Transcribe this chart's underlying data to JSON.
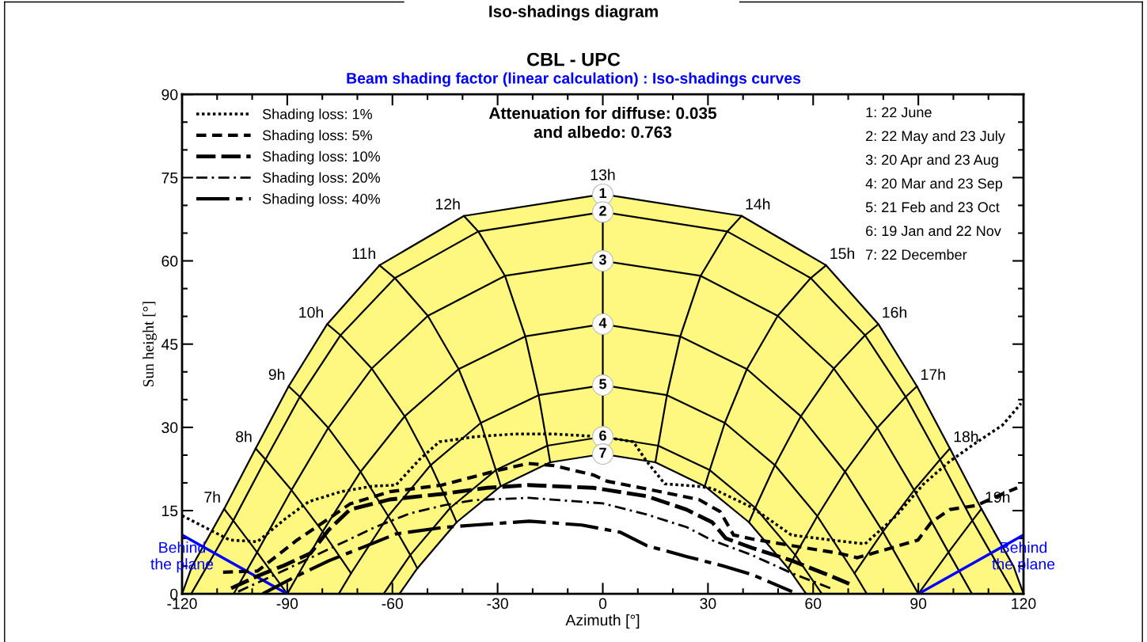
{
  "chart_data": {
    "type": "line",
    "title": "CBL - UPC",
    "subtitle": "Beam shading factor (linear calculation) : Iso-shadings curves",
    "xlabel": "Azimuth [°]",
    "ylabel": "Sun height [°]",
    "xlim": [
      -120,
      120
    ],
    "ylim": [
      0,
      90
    ],
    "xticks": [
      -120,
      {
        "value": -110,
        "label": null
      },
      {
        "value": -100,
        "label": null
      },
      -90,
      {
        "value": -80,
        "label": null
      },
      {
        "value": -70,
        "label": null
      },
      -60,
      {
        "value": -50,
        "label": null
      },
      {
        "value": -40,
        "label": null
      },
      -30,
      {
        "value": -20,
        "label": null
      },
      {
        "value": -10,
        "label": null
      },
      0,
      {
        "value": 10,
        "label": null
      },
      {
        "value": 20,
        "label": null
      },
      30,
      {
        "value": 40,
        "label": null
      },
      {
        "value": 50,
        "label": null
      },
      60,
      {
        "value": 70,
        "label": null
      },
      {
        "value": 80,
        "label": null
      },
      90,
      {
        "value": 100,
        "label": null
      },
      {
        "value": 110,
        "label": null
      },
      120
    ],
    "yticks": [
      0,
      {
        "value": 5,
        "label": null
      },
      {
        "value": 10,
        "label": null
      },
      15,
      {
        "value": 20,
        "label": null
      },
      {
        "value": 25,
        "label": null
      },
      30,
      {
        "value": 35,
        "label": null
      },
      {
        "value": 40,
        "label": null
      },
      45,
      {
        "value": 50,
        "label": null
      },
      {
        "value": 55,
        "label": null
      },
      60,
      {
        "value": 65,
        "label": null
      },
      {
        "value": 70,
        "label": null
      },
      75,
      {
        "value": 80,
        "label": null
      },
      {
        "value": 85,
        "label": null
      },
      90
    ],
    "grid": false,
    "legend": "top left",
    "marker": "none",
    "annotations": [
      "Iso-shadings diagram",
      "Attenuation for diffuse: 0.035\nand albedo: 0.763",
      "1: 22 June",
      "2: 22 May and 23 July",
      "3: 20 Apr and 23 Aug",
      "4: 20 Mar and 23 Sep",
      "5: 21 Feb and 23 Oct",
      "6: 19 Jan and 22 Nov",
      "7: 22 December"
    ],
    "series": [
      {
        "name": "1",
        "type": "area",
        "color": "#fff880",
        "x": [
          -120,
          -117.2,
          -108,
          -99,
          -89.6,
          -78.6,
          -63.7,
          -39.6,
          0,
          39.6,
          63.7,
          78.6,
          89.6,
          99,
          108,
          117.2,
          120
        ],
        "values": [
          0,
          4.9,
          15.3,
          26.2,
          37.4,
          48.6,
          59.2,
          68.1,
          72,
          68.1,
          59.2,
          48.6,
          37.4,
          26.2,
          15.3,
          4.9,
          0
        ]
      },
      {
        "name": "2",
        "color": "#000000",
        "x": [
          -117.4,
          -105.4,
          -96.2,
          -86.4,
          -74.8,
          -59.3,
          -35.5,
          0,
          35.5,
          59.3,
          74.8,
          86.4,
          96.2,
          105.4,
          117.4
        ],
        "values": [
          0,
          13.2,
          24.2,
          35.5,
          46.6,
          56.9,
          65.3,
          68.8,
          65.3,
          56.9,
          46.6,
          35.5,
          24.2,
          13.2,
          0
        ]
      },
      {
        "name": "3",
        "color": "#000000",
        "x": [
          -105.3,
          -98.6,
          -88.8,
          -78.3,
          -65.9,
          -49.9,
          -27.9,
          0,
          27.9,
          49.9,
          65.9,
          78.3,
          88.8,
          98.6,
          105.3
        ],
        "values": [
          0,
          7.5,
          18.7,
          29.9,
          40.6,
          50.1,
          57.3,
          60,
          57.3,
          50.1,
          40.6,
          29.9,
          18.7,
          7.5,
          0
        ]
      },
      {
        "name": "4",
        "color": "#000000",
        "x": [
          -90,
          -79.9,
          -69.1,
          -56.5,
          -41.1,
          -22.1,
          0,
          22.1,
          41.1,
          56.5,
          69.1,
          79.9,
          90
        ],
        "values": [
          0,
          11.2,
          22,
          32,
          40.5,
          46.4,
          48.6,
          46.4,
          40.5,
          32,
          22,
          11.2,
          0
        ]
      },
      {
        "name": "5",
        "color": "#000000",
        "x": [
          -75.3,
          -71.8,
          -61.2,
          -49.1,
          -34.8,
          -18.3,
          0,
          18.3,
          34.8,
          49.1,
          61.2,
          71.8,
          75.3
        ],
        "values": [
          0,
          3.7,
          14,
          23.2,
          30.8,
          35.8,
          37.6,
          35.8,
          30.8,
          23.2,
          14,
          3.7,
          0
        ]
      },
      {
        "name": "6",
        "color": "#000000",
        "x": [
          -62.5,
          -54.9,
          -43.5,
          -30.5,
          -15.8,
          0,
          15.8,
          30.5,
          43.5,
          54.9,
          62.5
        ],
        "values": [
          0,
          7,
          15.5,
          22.3,
          26.7,
          28.3,
          26.7,
          22.3,
          15.5,
          7,
          0
        ]
      },
      {
        "name": "7",
        "type": "area",
        "color": "#ffffff",
        "x": [
          -58,
          -52.9,
          -41.7,
          -29.1,
          -15,
          0,
          15,
          29.1,
          41.7,
          52.9,
          58
        ],
        "values": [
          0,
          4.6,
          12.9,
          19.4,
          23.7,
          25.2,
          23.7,
          19.4,
          12.9,
          4.6,
          0
        ]
      },
      {
        "name": "7h",
        "color": "#000000",
        "x": [
          -108,
          -105.4,
          -98.6,
          -90
        ],
        "values": [
          15.3,
          13.2,
          7.5,
          0
        ]
      },
      {
        "name": "8h",
        "color": "#000000",
        "x": [
          -99,
          -96.2,
          -88.8,
          -79.9,
          -71.8
        ],
        "values": [
          26.2,
          24.2,
          18.7,
          11.2,
          3.7
        ]
      },
      {
        "name": "9h",
        "color": "#000000",
        "x": [
          -89.6,
          -86.4,
          -78.3,
          -69.1,
          -61.2,
          -54.9,
          -52.9
        ],
        "values": [
          37.4,
          35.5,
          29.9,
          22,
          14,
          7,
          4.6
        ]
      },
      {
        "name": "10h",
        "color": "#000000",
        "x": [
          -78.6,
          -74.8,
          -65.9,
          -56.5,
          -49.1,
          -43.5,
          -41.7
        ],
        "values": [
          48.6,
          46.6,
          40.6,
          32,
          23.2,
          15.5,
          12.9
        ]
      },
      {
        "name": "11h",
        "color": "#000000",
        "x": [
          -63.7,
          -59.3,
          -49.9,
          -41.1,
          -34.8,
          -30.5,
          -29.1
        ],
        "values": [
          59.2,
          56.9,
          50.1,
          40.5,
          30.8,
          22.3,
          19.4
        ]
      },
      {
        "name": "12h",
        "color": "#000000",
        "x": [
          -39.6,
          -35.5,
          -27.9,
          -22.1,
          -18.3,
          -15.8,
          -15
        ],
        "values": [
          68.1,
          65.3,
          57.3,
          46.4,
          35.8,
          26.7,
          23.7
        ]
      },
      {
        "name": "13h",
        "color": "#000000",
        "x": [
          0,
          0,
          0,
          0,
          0,
          0,
          0
        ],
        "values": [
          72,
          68.8,
          60,
          48.6,
          37.6,
          28.3,
          25.2
        ]
      },
      {
        "name": "14h",
        "color": "#000000",
        "x": [
          39.6,
          35.5,
          27.9,
          22.1,
          18.3,
          15.8,
          15
        ],
        "values": [
          68.1,
          65.3,
          57.3,
          46.4,
          35.8,
          26.7,
          23.7
        ]
      },
      {
        "name": "15h",
        "color": "#000000",
        "x": [
          63.7,
          59.3,
          49.9,
          41.1,
          34.8,
          30.5,
          29.1
        ],
        "values": [
          59.2,
          56.9,
          50.1,
          40.5,
          30.8,
          22.3,
          19.4
        ]
      },
      {
        "name": "16h",
        "color": "#000000",
        "x": [
          78.6,
          74.8,
          65.9,
          56.5,
          49.1,
          43.5,
          41.7
        ],
        "values": [
          48.6,
          46.6,
          40.6,
          32,
          23.2,
          15.5,
          12.9
        ]
      },
      {
        "name": "17h",
        "color": "#000000",
        "x": [
          89.6,
          86.4,
          78.3,
          69.1,
          61.2,
          54.9,
          52.9
        ],
        "values": [
          37.4,
          35.5,
          29.9,
          22,
          14,
          7,
          4.6
        ]
      },
      {
        "name": "18h",
        "color": "#000000",
        "x": [
          99,
          96.2,
          88.8,
          79.9,
          71.8
        ],
        "values": [
          26.2,
          24.2,
          18.7,
          11.2,
          3.7
        ]
      },
      {
        "name": "19h",
        "color": "#000000",
        "x": [
          108,
          105.4,
          98.6,
          90
        ],
        "values": [
          15.3,
          13.2,
          7.5,
          0
        ]
      },
      {
        "name": "Behind\nthe plane",
        "color": "#0000ff",
        "x": [
          -120,
          -90
        ],
        "values": [
          10.6,
          0
        ]
      },
      {
        "name": "Behind\nthe plane",
        "color": "#0000ff",
        "x": [
          90,
          120
        ],
        "values": [
          0,
          10.6
        ]
      },
      {
        "name": "Shading loss: 1%",
        "color": "#000000",
        "line_style": "dotted",
        "x": [
          -120,
          -106.4,
          -98.5,
          -90.6,
          -83.9,
          -74.8,
          -65.8,
          -59,
          -52.3,
          -46.6,
          -36.5,
          -25.2,
          -13.9,
          0,
          8.7,
          12.5,
          17.7,
          26.7,
          31.2,
          42.5,
          53.8,
          65.1,
          74.8,
          83.9,
          91.5,
          99,
          106.4,
          114,
          119.3
        ],
        "values": [
          14.1,
          9.7,
          9.4,
          13.5,
          16.6,
          18.4,
          19.4,
          19.6,
          24.2,
          27.4,
          28.3,
          28.8,
          28.8,
          28.3,
          27.4,
          23.9,
          19.8,
          19.4,
          19,
          15.6,
          10.6,
          9.7,
          9,
          14.2,
          19.8,
          23.9,
          27.2,
          30.4,
          34.3
        ]
      },
      {
        "name": "Shading loss: 5%",
        "color": "#000000",
        "line_style": "dashed",
        "x": [
          -108.3,
          -98.5,
          -87.2,
          -79.7,
          -72.1,
          -60.8,
          -45.9,
          -30.8,
          -21.3,
          -13.9,
          -2.6,
          1.2,
          12.5,
          27.4,
          33.5,
          37.3,
          42.5,
          53.8,
          67.4,
          72.6,
          80.2,
          89.9,
          93.7,
          99,
          106.4,
          114,
          118.2
        ],
        "values": [
          3.9,
          4.1,
          9.7,
          12.9,
          16.2,
          18.4,
          19.6,
          22.1,
          23.5,
          23.1,
          21.4,
          20.3,
          18.9,
          17,
          14.8,
          10.6,
          9.9,
          8.7,
          7.3,
          6.5,
          7.9,
          9.7,
          12.9,
          15.2,
          15.9,
          18,
          19.1
        ]
      },
      {
        "name": "Shading loss: 10%",
        "color": "#000000",
        "line_style": "dashed",
        "x": [
          -106,
          -98.5,
          -91,
          -83.4,
          -78.2,
          -72.1,
          -60.8,
          -45.9,
          -33,
          -21.3,
          -2.6,
          12.5,
          23.8,
          31.2,
          35.1,
          42.5,
          53.8,
          65.1,
          70.3
        ],
        "values": [
          1,
          3.2,
          5.1,
          7.3,
          11.5,
          15.2,
          17,
          18,
          19.1,
          19.6,
          19.1,
          17.6,
          15.2,
          12.9,
          10,
          8.3,
          6,
          3.2,
          1.8
        ]
      },
      {
        "name": "Shading loss: 20%",
        "color": "#000000",
        "line_style": "dashdot",
        "x": [
          -104,
          -95,
          -85,
          -75,
          -65,
          -55,
          -45,
          -36.5,
          -21,
          0,
          12.5,
          24,
          31,
          42.5,
          54,
          65
        ],
        "values": [
          0.4,
          3,
          6,
          9,
          12,
          14.5,
          16,
          16.9,
          17.3,
          16.3,
          14.3,
          12,
          9.7,
          7,
          3.7,
          1
        ]
      },
      {
        "name": "Shading loss: 40%",
        "color": "#000000",
        "line_style": "dashdot",
        "x": [
          -97,
          -88,
          -78,
          -68,
          -59,
          -45,
          -36.5,
          -21,
          -6,
          5,
          12.5,
          24,
          34,
          42.5,
          54
        ],
        "values": [
          0,
          3,
          6,
          8.5,
          10.8,
          12,
          12.4,
          13.1,
          12.4,
          11.1,
          8.7,
          6.7,
          5.1,
          3.5,
          0.4
        ]
      }
    ]
  }
}
